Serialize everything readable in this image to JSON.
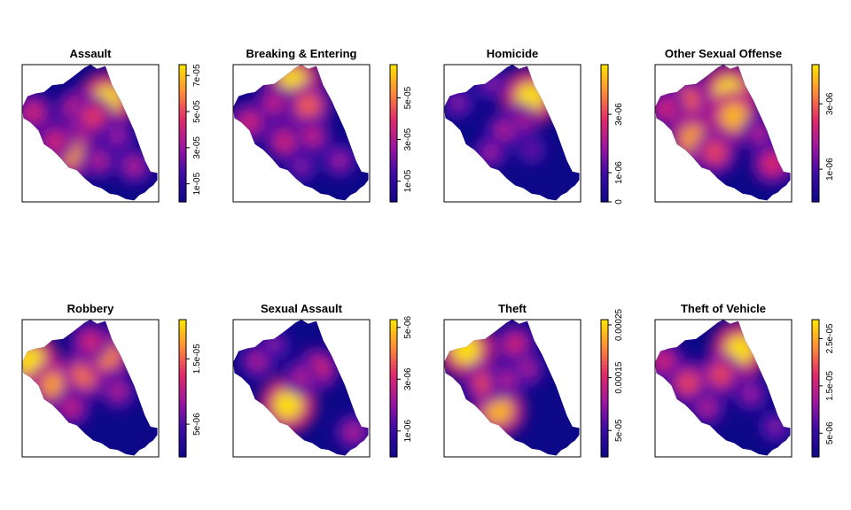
{
  "figure": {
    "layout": "2 rows x 4 columns",
    "palette": {
      "low": "#0D0887",
      "mid_low": "#3A0AA6",
      "mid": "#9B16A0",
      "mid_high": "#E0296B",
      "high": "#FE8A3A",
      "top": "#FFE600",
      "axis": "#000000",
      "background": "#FFFFFF"
    }
  },
  "chart_data": [
    {
      "type": "heatmap",
      "title": "Assault",
      "colorbar": {
        "tick_labels": [
          "1e-05",
          "3e-05",
          "5e-05",
          "7e-05"
        ],
        "tick_values": [
          1e-05,
          3e-05,
          5e-05,
          7e-05
        ],
        "range": [
          0,
          7.6e-05
        ]
      },
      "hotspots": [
        {
          "x": 0.62,
          "y": 0.74,
          "value": 1.0
        },
        {
          "x": 0.4,
          "y": 0.68,
          "value": 0.55
        },
        {
          "x": 0.52,
          "y": 0.62,
          "value": 0.62
        },
        {
          "x": 0.35,
          "y": 0.36,
          "value": 0.85
        },
        {
          "x": 0.24,
          "y": 0.44,
          "value": 0.55
        },
        {
          "x": 0.08,
          "y": 0.65,
          "value": 0.55
        },
        {
          "x": 0.56,
          "y": 0.3,
          "value": 0.45
        },
        {
          "x": 0.82,
          "y": 0.26,
          "value": 0.45
        },
        {
          "x": 0.7,
          "y": 0.48,
          "value": 0.4
        }
      ]
    },
    {
      "type": "heatmap",
      "title": "Breaking & Entering",
      "colorbar": {
        "tick_labels": [
          "1e-05",
          "3e-05",
          "5e-05"
        ],
        "tick_values": [
          1e-05,
          3e-05,
          5e-05
        ],
        "range": [
          0,
          6.6e-05
        ]
      },
      "hotspots": [
        {
          "x": 0.44,
          "y": 0.87,
          "value": 1.0
        },
        {
          "x": 0.55,
          "y": 0.7,
          "value": 0.7
        },
        {
          "x": 0.3,
          "y": 0.72,
          "value": 0.5
        },
        {
          "x": 0.12,
          "y": 0.58,
          "value": 0.55
        },
        {
          "x": 0.38,
          "y": 0.44,
          "value": 0.55
        },
        {
          "x": 0.58,
          "y": 0.48,
          "value": 0.5
        },
        {
          "x": 0.5,
          "y": 0.26,
          "value": 0.35
        },
        {
          "x": 0.78,
          "y": 0.3,
          "value": 0.4
        }
      ]
    },
    {
      "type": "heatmap",
      "title": "Homicide",
      "colorbar": {
        "tick_labels": [
          "0",
          "1e-06",
          "3e-06"
        ],
        "tick_values": [
          0,
          1e-06,
          3e-06
        ],
        "range": [
          0,
          4.7e-06
        ]
      },
      "hotspots": [
        {
          "x": 0.63,
          "y": 0.76,
          "value": 1.0
        },
        {
          "x": 0.55,
          "y": 0.58,
          "value": 0.5
        },
        {
          "x": 0.44,
          "y": 0.52,
          "value": 0.45
        },
        {
          "x": 0.34,
          "y": 0.86,
          "value": 0.35
        },
        {
          "x": 0.1,
          "y": 0.72,
          "value": 0.35
        },
        {
          "x": 0.34,
          "y": 0.36,
          "value": 0.4
        },
        {
          "x": 0.64,
          "y": 0.38,
          "value": 0.3
        }
      ]
    },
    {
      "type": "heatmap",
      "title": "Other Sexual Offense",
      "colorbar": {
        "tick_labels": [
          "1e-06",
          "3e-06"
        ],
        "tick_values": [
          1e-06,
          3e-06
        ],
        "range": [
          0,
          4.2e-06
        ]
      },
      "hotspots": [
        {
          "x": 0.54,
          "y": 0.8,
          "value": 1.0
        },
        {
          "x": 0.58,
          "y": 0.62,
          "value": 0.9
        },
        {
          "x": 0.24,
          "y": 0.74,
          "value": 0.7
        },
        {
          "x": 0.08,
          "y": 0.68,
          "value": 0.55
        },
        {
          "x": 0.28,
          "y": 0.46,
          "value": 0.85
        },
        {
          "x": 0.44,
          "y": 0.36,
          "value": 0.65
        },
        {
          "x": 0.86,
          "y": 0.28,
          "value": 0.6
        },
        {
          "x": 0.76,
          "y": 0.5,
          "value": 0.45
        }
      ]
    },
    {
      "type": "heatmap",
      "title": "Robbery",
      "colorbar": {
        "tick_labels": [
          "5e-06",
          "1.5e-05"
        ],
        "tick_values": [
          5e-06,
          1.5e-05
        ],
        "range": [
          0,
          2.1e-05
        ]
      },
      "hotspots": [
        {
          "x": 0.06,
          "y": 0.7,
          "value": 1.0
        },
        {
          "x": 0.24,
          "y": 0.52,
          "value": 0.85
        },
        {
          "x": 0.46,
          "y": 0.6,
          "value": 0.75
        },
        {
          "x": 0.62,
          "y": 0.74,
          "value": 0.8
        },
        {
          "x": 0.5,
          "y": 0.84,
          "value": 0.55
        },
        {
          "x": 0.36,
          "y": 0.36,
          "value": 0.5
        },
        {
          "x": 0.7,
          "y": 0.48,
          "value": 0.45
        }
      ]
    },
    {
      "type": "heatmap",
      "title": "Sexual Assault",
      "colorbar": {
        "tick_labels": [
          "1e-06",
          "3e-06",
          "5e-06"
        ],
        "tick_values": [
          1e-06,
          3e-06,
          5e-06
        ],
        "range": [
          0,
          5.3e-06
        ]
      },
      "hotspots": [
        {
          "x": 0.4,
          "y": 0.38,
          "value": 1.0
        },
        {
          "x": 0.62,
          "y": 0.64,
          "value": 0.6
        },
        {
          "x": 0.5,
          "y": 0.58,
          "value": 0.45
        },
        {
          "x": 0.18,
          "y": 0.7,
          "value": 0.45
        },
        {
          "x": 0.3,
          "y": 0.82,
          "value": 0.35
        },
        {
          "x": 0.88,
          "y": 0.18,
          "value": 0.45
        }
      ]
    },
    {
      "type": "heatmap",
      "title": "Theft",
      "colorbar": {
        "tick_labels": [
          "5e-05",
          "0.00015",
          "0.00025"
        ],
        "tick_values": [
          5e-05,
          0.00015,
          0.00025
        ],
        "range": [
          0,
          0.00026
        ]
      },
      "hotspots": [
        {
          "x": 0.16,
          "y": 0.78,
          "value": 1.0
        },
        {
          "x": 0.4,
          "y": 0.34,
          "value": 0.9
        },
        {
          "x": 0.3,
          "y": 0.54,
          "value": 0.65
        },
        {
          "x": 0.52,
          "y": 0.82,
          "value": 0.55
        },
        {
          "x": 0.6,
          "y": 0.64,
          "value": 0.45
        },
        {
          "x": 0.46,
          "y": 0.56,
          "value": 0.45
        }
      ]
    },
    {
      "type": "heatmap",
      "title": "Theft of Vehicle",
      "colorbar": {
        "tick_labels": [
          "5e-06",
          "1.5e-05",
          "2.5e-05"
        ],
        "tick_values": [
          5e-06,
          1.5e-05,
          2.5e-05
        ],
        "range": [
          0,
          2.9e-05
        ]
      },
      "hotspots": [
        {
          "x": 0.62,
          "y": 0.78,
          "value": 1.0
        },
        {
          "x": 0.48,
          "y": 0.6,
          "value": 0.65
        },
        {
          "x": 0.24,
          "y": 0.54,
          "value": 0.65
        },
        {
          "x": 0.06,
          "y": 0.7,
          "value": 0.55
        },
        {
          "x": 0.38,
          "y": 0.36,
          "value": 0.45
        },
        {
          "x": 0.7,
          "y": 0.46,
          "value": 0.4
        },
        {
          "x": 0.88,
          "y": 0.22,
          "value": 0.35
        }
      ]
    }
  ]
}
